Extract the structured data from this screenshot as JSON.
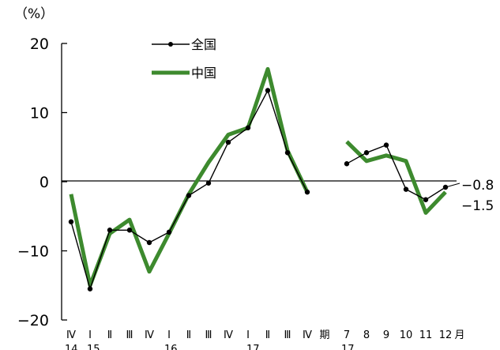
{
  "chart_data": {
    "type": "line",
    "y_unit_label": "（%）",
    "ylim": [
      -20,
      20
    ],
    "yticks": [
      "20",
      "10",
      "0",
      "−10",
      "−20"
    ],
    "ytick_values": [
      20,
      10,
      0,
      -10,
      -20
    ],
    "grid": false,
    "legend_position": "top-left",
    "x_tick_labels": [
      "Ⅳ",
      "Ⅰ",
      "Ⅱ",
      "Ⅲ",
      "Ⅳ",
      "Ⅰ",
      "Ⅱ",
      "Ⅲ",
      "Ⅳ",
      "Ⅰ",
      "Ⅱ",
      "Ⅲ",
      "Ⅳ",
      "期",
      "7",
      "8",
      "9",
      "10",
      "11",
      "12",
      "月"
    ],
    "x_year_labels": [
      "14",
      "15",
      "16",
      "17",
      "17"
    ],
    "series": [
      {
        "name": "全国",
        "color": "#000000",
        "marker": "circle",
        "segments": [
          [
            -5.8,
            -15.5,
            -7.0,
            -7.0,
            -8.8,
            -7.3,
            -2.0,
            -0.2,
            5.7,
            7.8,
            13.2,
            4.2,
            -1.5
          ],
          [
            2.6,
            4.2,
            5.3,
            -1.1,
            -2.6,
            -0.8
          ]
        ]
      },
      {
        "name": "中国",
        "color": "#3d8a2e",
        "marker": "none",
        "segments": [
          [
            -1.8,
            -15.0,
            -7.5,
            -5.5,
            -13.0,
            -7.5,
            -1.8,
            2.8,
            6.8,
            7.8,
            16.3,
            4.5,
            -1.5
          ],
          [
            5.8,
            3.0,
            3.8,
            3.0,
            -4.5,
            -1.5
          ]
        ]
      }
    ],
    "end_labels": [
      "−0.8",
      "−1.5"
    ],
    "end_label_values": [
      -0.8,
      -1.5
    ]
  }
}
